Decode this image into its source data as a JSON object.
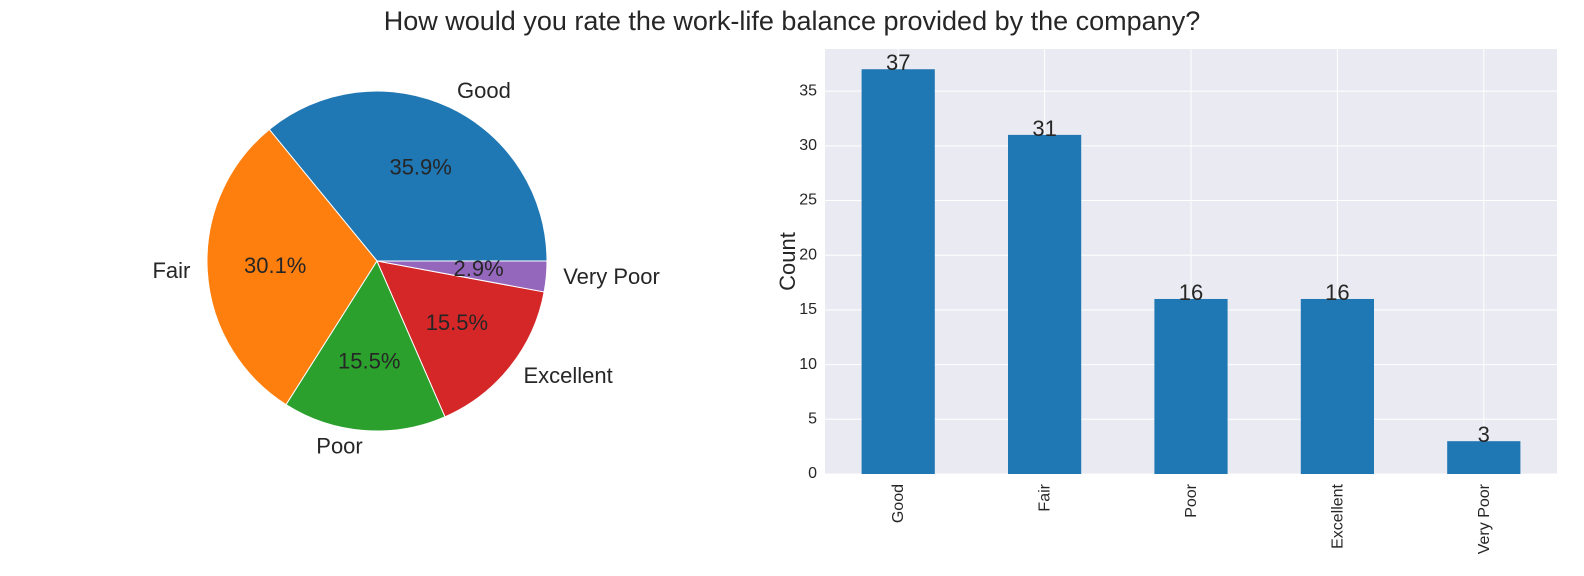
{
  "figure": {
    "title": "How would you rate the work-life balance provided by the company?"
  },
  "chart_data": [
    {
      "type": "pie",
      "categories": [
        "Good",
        "Fair",
        "Poor",
        "Excellent",
        "Very Poor"
      ],
      "values": [
        37,
        31,
        16,
        16,
        3
      ],
      "percent_labels": [
        "35.9%",
        "30.1%",
        "15.5%",
        "15.5%",
        "2.9%"
      ],
      "colors": [
        "#1f77b4",
        "#ff7f0e",
        "#2ca02c",
        "#d62728",
        "#9467bd"
      ],
      "start_angle_deg": 0,
      "direction": "counterclockwise"
    },
    {
      "type": "bar",
      "categories": [
        "Good",
        "Fair",
        "Poor",
        "Excellent",
        "Very Poor"
      ],
      "values": [
        37,
        31,
        16,
        16,
        3
      ],
      "value_labels": [
        "37",
        "31",
        "16",
        "16",
        "3"
      ],
      "xlabel": "",
      "ylabel": "Count",
      "ylim": [
        0,
        38.85
      ],
      "yticks": [
        0,
        5,
        10,
        15,
        20,
        25,
        30,
        35
      ],
      "bar_color": "#1f77b4",
      "background": "#eaeaf2",
      "grid": true
    }
  ]
}
